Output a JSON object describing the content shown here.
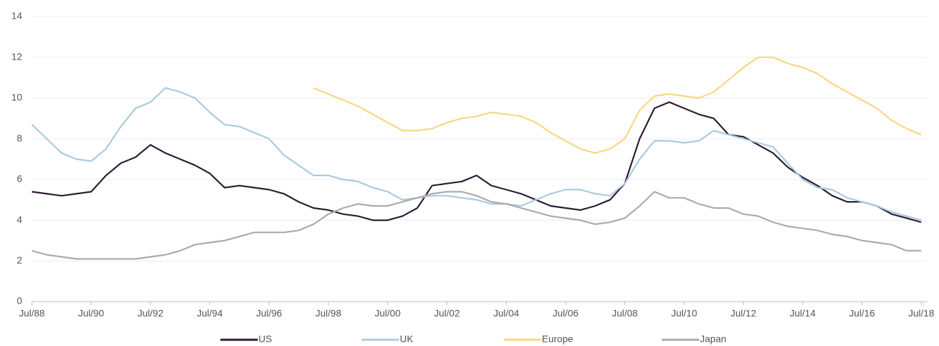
{
  "chart_data": {
    "type": "line",
    "x": [
      1988.5,
      1989,
      1989.5,
      1990,
      1990.5,
      1991,
      1991.5,
      1992,
      1992.5,
      1993,
      1993.5,
      1994,
      1994.5,
      1995,
      1995.5,
      1996,
      1996.5,
      1997,
      1997.5,
      1998,
      1998.5,
      1999,
      1999.5,
      2000,
      2000.5,
      2001,
      2001.5,
      2002,
      2002.5,
      2003,
      2003.5,
      2004,
      2004.5,
      2005,
      2005.5,
      2006,
      2006.5,
      2007,
      2007.5,
      2008,
      2008.5,
      2009,
      2009.5,
      2010,
      2010.5,
      2011,
      2011.5,
      2012,
      2012.5,
      2013,
      2013.5,
      2014,
      2014.5,
      2015,
      2015.5,
      2016,
      2016.5,
      2017,
      2017.5,
      2018,
      2018.5
    ],
    "series": [
      {
        "name": "US",
        "color": "#2e1a33",
        "values": [
          5.4,
          5.3,
          5.2,
          5.3,
          5.4,
          6.2,
          6.8,
          7.1,
          7.7,
          7.3,
          7.0,
          6.7,
          6.3,
          5.6,
          5.7,
          5.6,
          5.5,
          5.3,
          4.9,
          4.6,
          4.5,
          4.3,
          4.2,
          4.0,
          4.0,
          4.2,
          4.6,
          5.7,
          5.8,
          5.9,
          6.2,
          5.7,
          5.5,
          5.3,
          5.0,
          4.7,
          4.6,
          4.5,
          4.7,
          5.0,
          5.8,
          8.0,
          9.5,
          9.8,
          9.5,
          9.2,
          9.0,
          8.2,
          8.1,
          7.7,
          7.3,
          6.6,
          6.1,
          5.7,
          5.2,
          4.9,
          4.9,
          4.7,
          4.3,
          4.1,
          3.9
        ]
      },
      {
        "name": "UK",
        "color": "#a9cbdc",
        "values": [
          8.7,
          8.0,
          7.3,
          7.0,
          6.9,
          7.5,
          8.6,
          9.5,
          9.8,
          10.5,
          10.3,
          10.0,
          9.3,
          8.7,
          8.6,
          8.3,
          8.0,
          7.2,
          6.7,
          6.2,
          6.2,
          6.0,
          5.9,
          5.6,
          5.4,
          5.0,
          5.1,
          5.2,
          5.2,
          5.1,
          5.0,
          4.8,
          4.8,
          4.7,
          5.0,
          5.3,
          5.5,
          5.5,
          5.3,
          5.2,
          5.8,
          7.0,
          7.9,
          7.9,
          7.8,
          7.9,
          8.4,
          8.2,
          8.0,
          7.8,
          7.6,
          6.8,
          6.0,
          5.6,
          5.5,
          5.1,
          4.9,
          4.7,
          4.4,
          4.2,
          4.0
        ]
      },
      {
        "name": "Europe",
        "color": "#f9d77e",
        "values": [
          null,
          null,
          null,
          null,
          null,
          null,
          null,
          null,
          null,
          null,
          null,
          null,
          null,
          null,
          null,
          null,
          null,
          null,
          null,
          10.5,
          10.2,
          9.9,
          9.6,
          9.2,
          8.8,
          8.4,
          8.4,
          8.5,
          8.8,
          9.0,
          9.1,
          9.3,
          9.2,
          9.1,
          8.8,
          8.3,
          7.9,
          7.5,
          7.3,
          7.5,
          8.0,
          9.4,
          10.1,
          10.2,
          10.1,
          10.0,
          10.3,
          10.9,
          11.5,
          12.0,
          12.0,
          11.7,
          11.5,
          11.2,
          10.7,
          10.3,
          9.9,
          9.5,
          8.9,
          8.5,
          8.2
        ]
      },
      {
        "name": "Japan",
        "color": "#aaaaaa",
        "values": [
          2.5,
          2.3,
          2.2,
          2.1,
          2.1,
          2.1,
          2.1,
          2.1,
          2.2,
          2.3,
          2.5,
          2.8,
          2.9,
          3.0,
          3.2,
          3.4,
          3.4,
          3.4,
          3.5,
          3.8,
          4.3,
          4.6,
          4.8,
          4.7,
          4.7,
          4.9,
          5.1,
          5.3,
          5.4,
          5.4,
          5.2,
          4.9,
          4.8,
          4.6,
          4.4,
          4.2,
          4.1,
          4.0,
          3.8,
          3.9,
          4.1,
          4.7,
          5.4,
          5.1,
          5.1,
          4.8,
          4.6,
          4.6,
          4.3,
          4.2,
          3.9,
          3.7,
          3.6,
          3.5,
          3.3,
          3.2,
          3.0,
          2.9,
          2.8,
          2.5,
          2.5
        ]
      }
    ],
    "xlim": [
      1988.5,
      2018.7
    ],
    "xticks": [
      {
        "value": 1988.5,
        "label": "Jul/88"
      },
      {
        "value": 1990.5,
        "label": "Jul/90"
      },
      {
        "value": 1992.5,
        "label": "Jul/92"
      },
      {
        "value": 1994.5,
        "label": "Jul/94"
      },
      {
        "value": 1996.5,
        "label": "Jul/96"
      },
      {
        "value": 1998.5,
        "label": "Jul/98"
      },
      {
        "value": 2000.5,
        "label": "Jul/00"
      },
      {
        "value": 2002.5,
        "label": "Jul/02"
      },
      {
        "value": 2004.5,
        "label": "Jul/04"
      },
      {
        "value": 2006.5,
        "label": "Jul/06"
      },
      {
        "value": 2008.5,
        "label": "Jul/08"
      },
      {
        "value": 2010.5,
        "label": "Jul/10"
      },
      {
        "value": 2012.5,
        "label": "Jul/12"
      },
      {
        "value": 2014.5,
        "label": "Jul/14"
      },
      {
        "value": 2016.5,
        "label": "Jul/16"
      },
      {
        "value": 2018.5,
        "label": "Jul/18"
      }
    ],
    "ylim": [
      0,
      14
    ],
    "yticks": [
      0,
      2,
      4,
      6,
      8,
      10,
      12,
      14
    ],
    "grid": true,
    "legend": "bottom"
  }
}
